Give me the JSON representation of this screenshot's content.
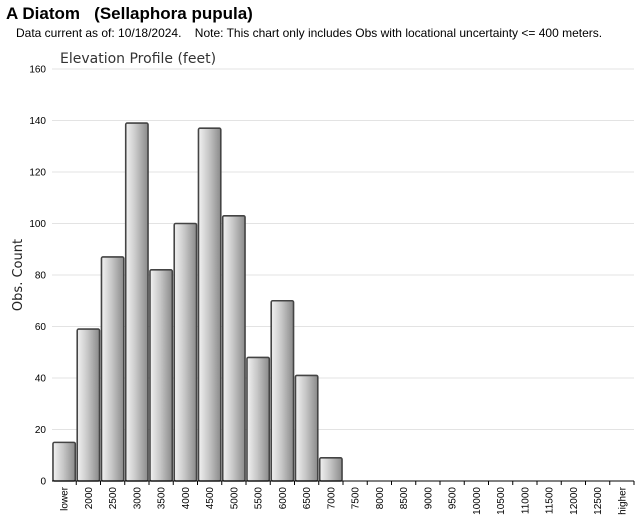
{
  "header": {
    "title": "A Diatom   (Sellaphora pupula)",
    "subtitle": "Data current as of: 10/18/2024.    Note: This chart only includes Obs with locational uncertainty <= 400 meters."
  },
  "chart_data": {
    "type": "bar",
    "title": "Elevation Profile (feet)",
    "xlabel": "",
    "ylabel": "Obs. Count",
    "ylim": [
      0,
      160
    ],
    "yticks": [
      0,
      20,
      40,
      60,
      80,
      100,
      120,
      140,
      160
    ],
    "grid": true,
    "categories": [
      "lower",
      "2000",
      "2500",
      "3000",
      "3500",
      "4000",
      "4500",
      "5000",
      "5500",
      "6000",
      "6500",
      "7000",
      "7500",
      "8000",
      "8500",
      "9000",
      "9500",
      "10000",
      "10500",
      "11000",
      "11500",
      "12000",
      "12500",
      "higher"
    ],
    "values": [
      15,
      59,
      87,
      139,
      82,
      100,
      137,
      103,
      48,
      70,
      41,
      9,
      0,
      0,
      0,
      0,
      0,
      0,
      0,
      0,
      0,
      0,
      0,
      0
    ],
    "colors": {
      "bar_light": "#f2f2f2",
      "bar_dark": "#8a8a8a",
      "bar_stroke": "#444444",
      "grid": "#e3e3e3"
    }
  }
}
